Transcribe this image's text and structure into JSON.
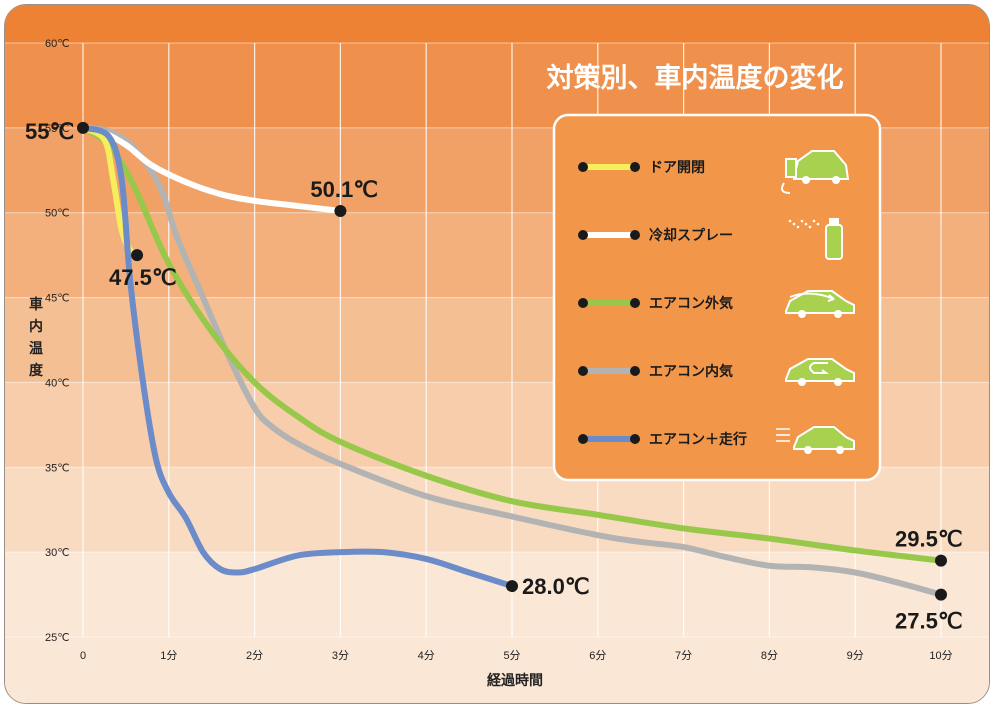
{
  "chart_data": {
    "type": "line",
    "title": "対策別、車内温度の変化",
    "xlabel": "経過時間",
    "ylabel": "車内温度",
    "xlim": [
      0,
      10
    ],
    "ylim": [
      25,
      60
    ],
    "x_ticks": [
      "0",
      "1分",
      "2分",
      "3分",
      "4分",
      "5分",
      "6分",
      "7分",
      "8分",
      "9分",
      "10分"
    ],
    "y_ticks": [
      "25℃",
      "30℃",
      "35℃",
      "40℃",
      "45℃",
      "50℃",
      "55℃",
      "60℃"
    ],
    "start_label": "55℃",
    "legend_position": "right",
    "series": [
      {
        "name": "ドア開閉",
        "color": "#f6ee5c",
        "icon": "car-doors-open-icon",
        "x": [
          0,
          0.25,
          0.35,
          0.45,
          0.55,
          0.63
        ],
        "y": [
          55,
          54.3,
          52.0,
          49.0,
          47.8,
          47.5
        ],
        "end_label": "47.5℃"
      },
      {
        "name": "冷却スプレー",
        "color": "#ffffff",
        "icon": "spray-can-icon",
        "x": [
          0,
          0.2,
          0.5,
          0.8,
          1.2,
          1.6,
          2.0,
          2.5,
          3.0
        ],
        "y": [
          55,
          54.8,
          54.0,
          52.8,
          51.8,
          51.1,
          50.7,
          50.4,
          50.1
        ],
        "end_label": "50.1℃"
      },
      {
        "name": "エアコン外気",
        "color": "#98c84a",
        "icon": "car-outside-air-icon",
        "x": [
          0,
          0.3,
          0.6,
          1.0,
          1.5,
          2.0,
          2.5,
          3.0,
          4.0,
          5.0,
          6.0,
          7.0,
          8.0,
          9.0,
          10.0
        ],
        "y": [
          55,
          54.0,
          51.5,
          47.0,
          43.0,
          40.0,
          38.0,
          36.5,
          34.5,
          33.0,
          32.2,
          31.4,
          30.8,
          30.1,
          29.5
        ],
        "end_label": "29.5℃"
      },
      {
        "name": "エアコン内気",
        "color": "#b3b3b3",
        "icon": "car-recirculate-icon",
        "x": [
          0,
          0.3,
          0.6,
          0.9,
          1.1,
          1.4,
          1.7,
          2.0,
          2.2,
          2.5,
          3.0,
          4.0,
          5.0,
          6.0,
          6.5,
          7.0,
          7.5,
          8.0,
          8.5,
          9.0,
          9.5,
          10.0
        ],
        "y": [
          55,
          54.8,
          53.8,
          51.5,
          48.5,
          45.0,
          41.5,
          38.5,
          37.4,
          36.4,
          35.2,
          33.3,
          32.1,
          31.0,
          30.6,
          30.3,
          29.7,
          29.2,
          29.1,
          28.8,
          28.2,
          27.5
        ],
        "end_label": "27.5℃"
      },
      {
        "name": "エアコン＋走行",
        "color": "#6b8cc8",
        "icon": "car-driving-icon",
        "x": [
          0,
          0.3,
          0.45,
          0.55,
          0.7,
          0.85,
          1.0,
          1.2,
          1.4,
          1.6,
          1.8,
          2.0,
          2.5,
          3.0,
          3.5,
          4.0,
          4.5,
          5.0
        ],
        "y": [
          55,
          54.5,
          52.0,
          46.0,
          40.0,
          35.5,
          33.5,
          32.0,
          30.0,
          29.0,
          28.8,
          29.0,
          29.8,
          30.0,
          30.0,
          29.6,
          28.8,
          28.0
        ],
        "end_label": "28.0℃"
      }
    ]
  }
}
